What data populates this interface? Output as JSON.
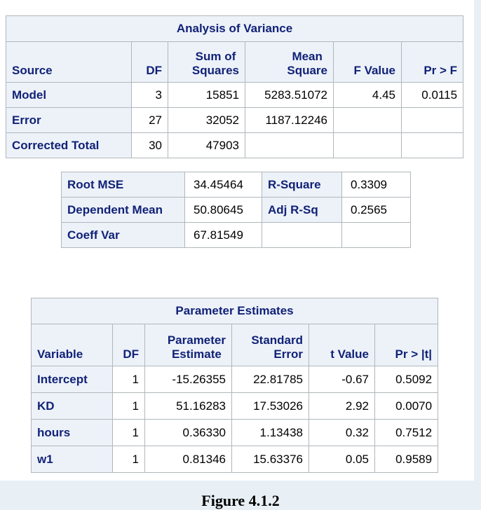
{
  "anova": {
    "title": "Analysis of Variance",
    "headers": {
      "source": "Source",
      "df": "DF",
      "ss_line1": "Sum of",
      "ss_line2": "Squares",
      "ms_line1": "Mean",
      "ms_line2": "Square",
      "f": "F Value",
      "p": "Pr > F"
    },
    "rows": [
      {
        "source": "Model",
        "df": "3",
        "ss": "15851",
        "ms": "5283.51072",
        "f": "4.45",
        "p": "0.0115"
      },
      {
        "source": "Error",
        "df": "27",
        "ss": "32052",
        "ms": "1187.12246",
        "f": "",
        "p": ""
      },
      {
        "source": "Corrected Total",
        "df": "30",
        "ss": "47903",
        "ms": "",
        "f": "",
        "p": ""
      }
    ]
  },
  "fit": {
    "rows": [
      {
        "label1": "Root MSE",
        "value1": "34.45464",
        "label2": "R-Square",
        "value2": "0.3309"
      },
      {
        "label1": "Dependent Mean",
        "value1": "50.80645",
        "label2": "Adj R-Sq",
        "value2": "0.2565"
      },
      {
        "label1": "Coeff Var",
        "value1": "67.81549",
        "label2": "",
        "value2": ""
      }
    ]
  },
  "params": {
    "title": "Parameter Estimates",
    "headers": {
      "variable": "Variable",
      "df": "DF",
      "est_line1": "Parameter",
      "est_line2": "Estimate",
      "se_line1": "Standard",
      "se_line2": "Error",
      "t": "t Value",
      "p": "Pr > |t|"
    },
    "rows": [
      {
        "variable": "Intercept",
        "df": "1",
        "est": "-15.26355",
        "se": "22.81785",
        "t": "-0.67",
        "p": "0.5092"
      },
      {
        "variable": "KD",
        "df": "1",
        "est": "51.16283",
        "se": "17.53026",
        "t": "2.92",
        "p": "0.0070"
      },
      {
        "variable": "hours",
        "df": "1",
        "est": "0.36330",
        "se": "1.13438",
        "t": "0.32",
        "p": "0.7512"
      },
      {
        "variable": "w1",
        "df": "1",
        "est": "0.81346",
        "se": "15.63376",
        "t": "0.05",
        "p": "0.9589"
      }
    ]
  },
  "caption": "Figure 4.1.2"
}
